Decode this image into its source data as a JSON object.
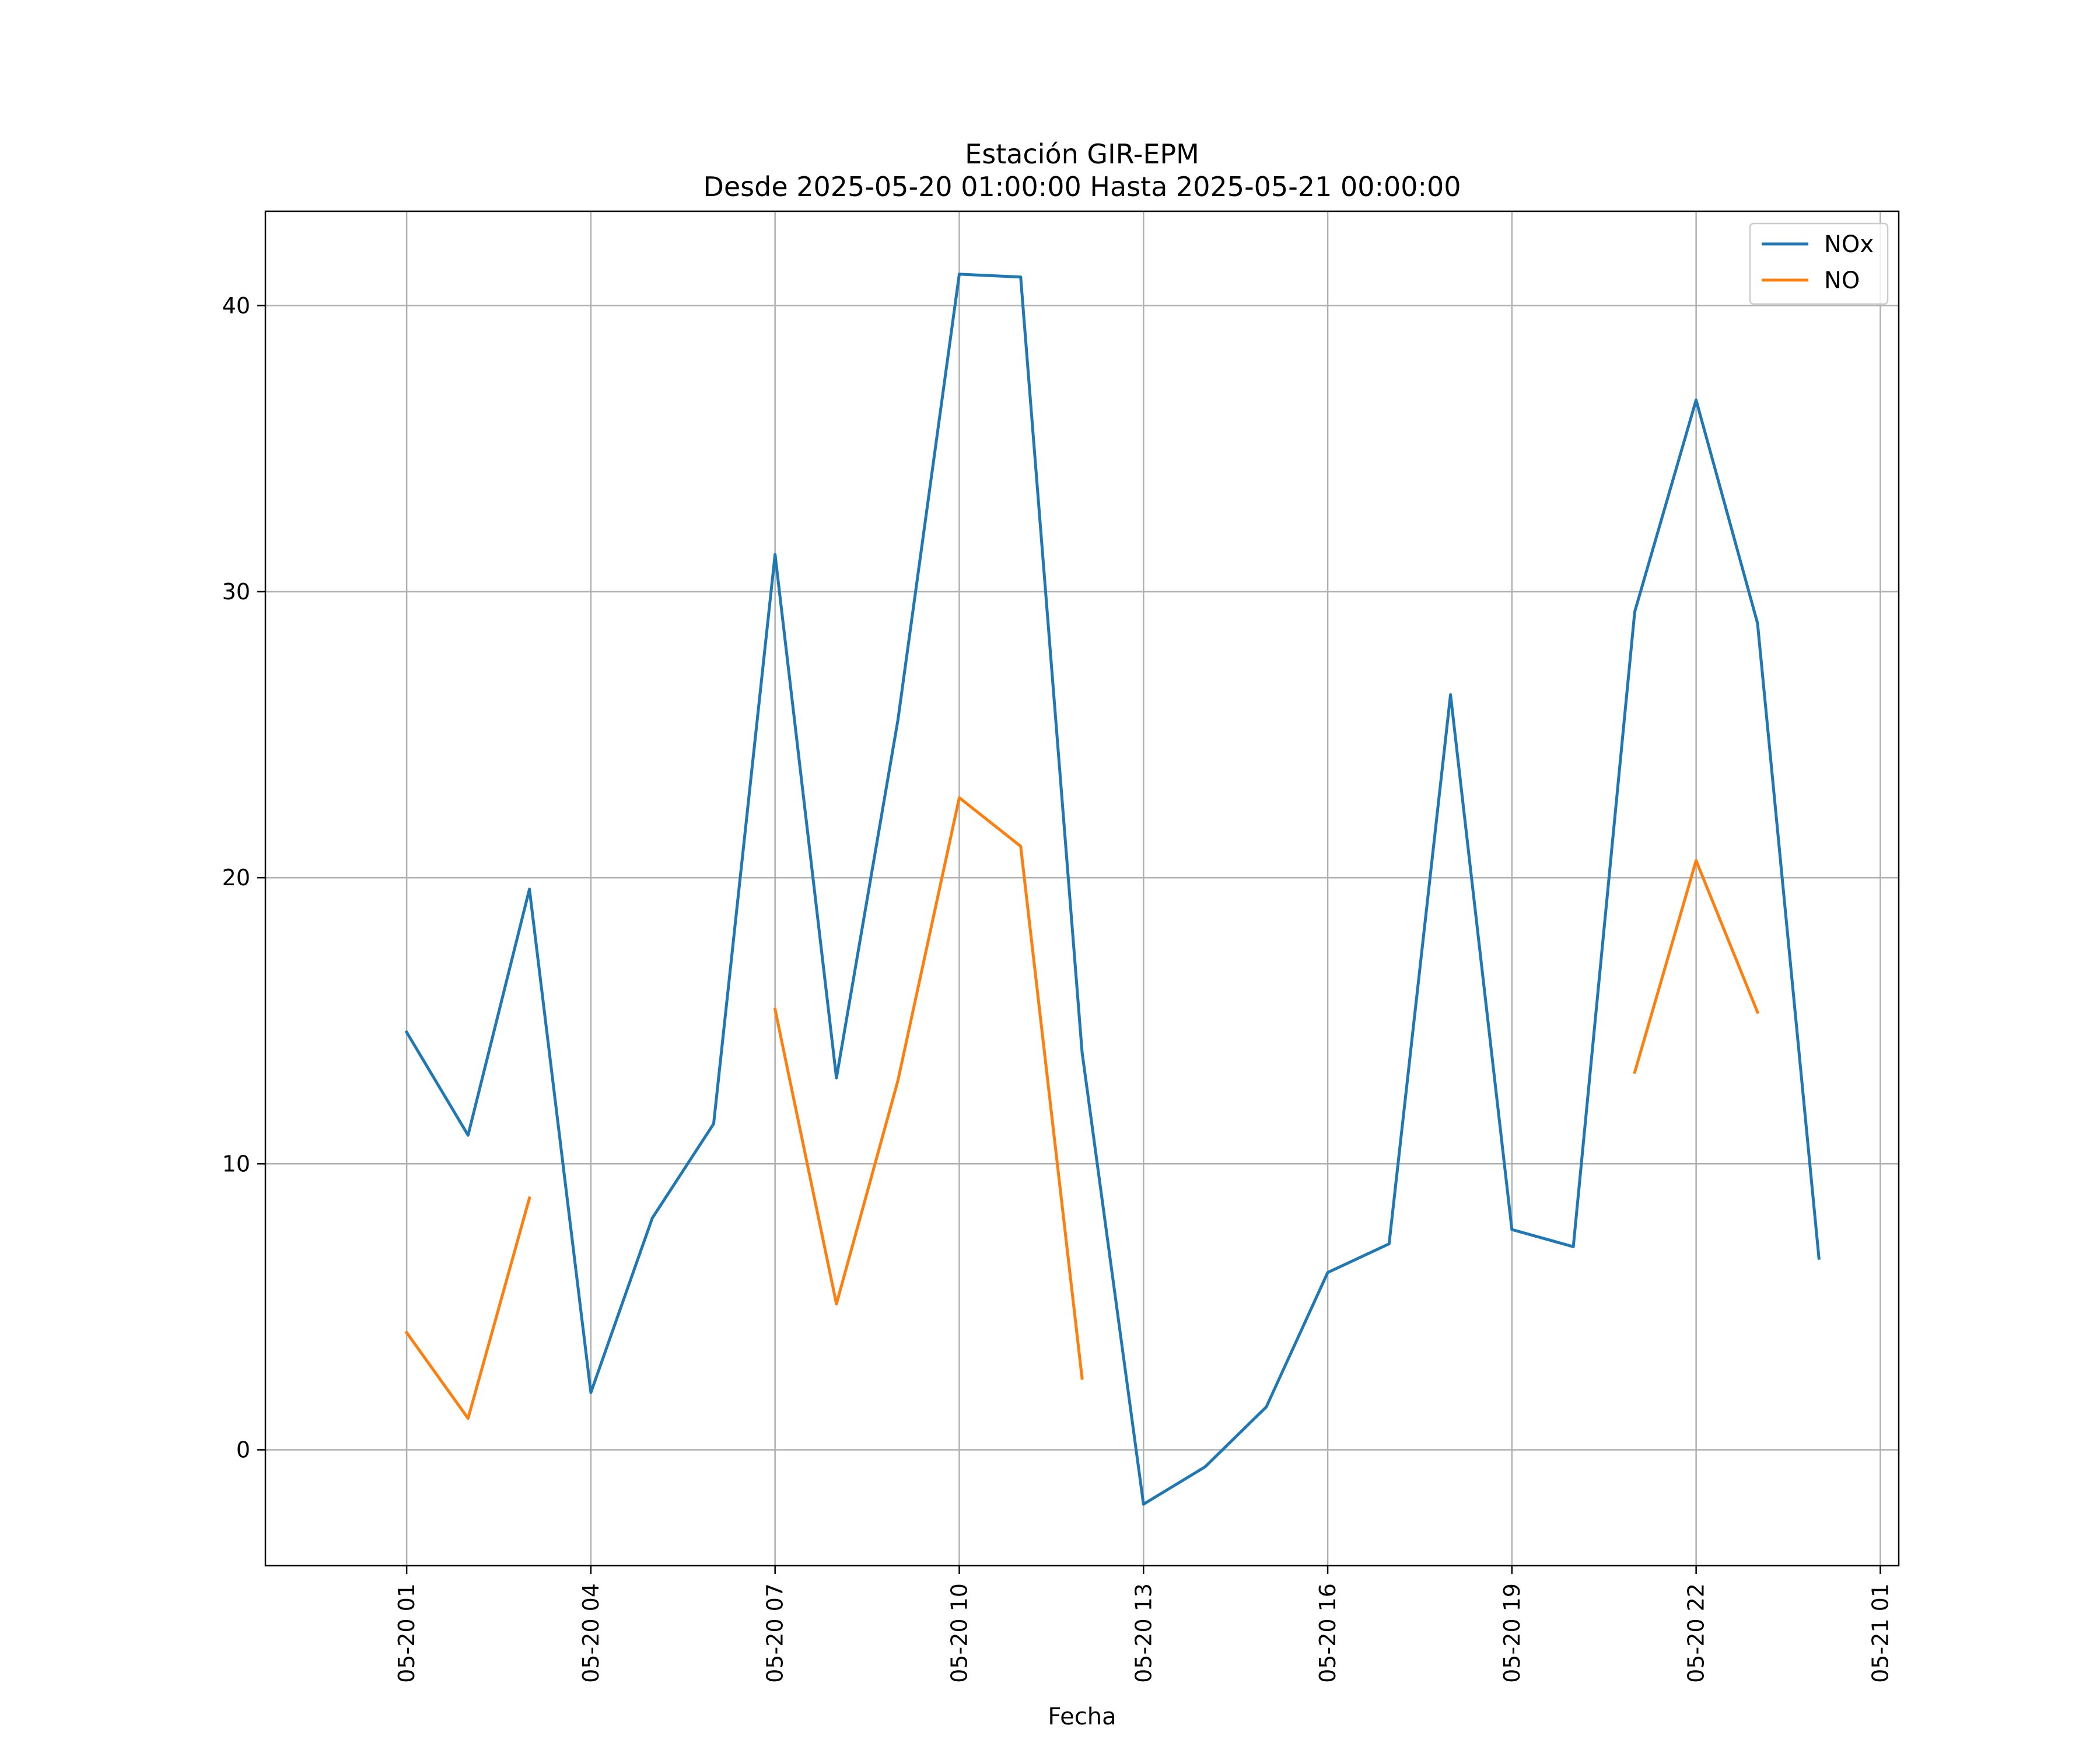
{
  "chart_data": {
    "type": "line",
    "title": "Estación GIR-EPM",
    "subtitle": "Desde 2025-05-20 01:00:00 Hasta 2025-05-21 00:00:00",
    "xlabel": "Fecha",
    "ylabel": "",
    "x": [
      "2025-05-20 01:00",
      "2025-05-20 02:00",
      "2025-05-20 03:00",
      "2025-05-20 04:00",
      "2025-05-20 05:00",
      "2025-05-20 06:00",
      "2025-05-20 07:00",
      "2025-05-20 08:00",
      "2025-05-20 09:00",
      "2025-05-20 10:00",
      "2025-05-20 11:00",
      "2025-05-20 12:00",
      "2025-05-20 13:00",
      "2025-05-20 14:00",
      "2025-05-20 15:00",
      "2025-05-20 16:00",
      "2025-05-20 17:00",
      "2025-05-20 18:00",
      "2025-05-20 19:00",
      "2025-05-20 20:00",
      "2025-05-20 21:00",
      "2025-05-20 22:00",
      "2025-05-20 23:00",
      "2025-05-21 00:00"
    ],
    "series": [
      {
        "name": "NOx",
        "color": "#1f77b4",
        "values": [
          14.6,
          11.0,
          19.6,
          2.0,
          8.1,
          11.4,
          31.3,
          13.0,
          25.5,
          41.1,
          41.0,
          13.9,
          -1.9,
          -0.6,
          1.5,
          6.2,
          7.2,
          26.4,
          7.7,
          7.1,
          29.3,
          36.7,
          28.9,
          6.7
        ]
      },
      {
        "name": "NO",
        "color": "#ff7f0e",
        "values": [
          4.1,
          1.1,
          8.8,
          null,
          null,
          null,
          15.4,
          5.1,
          12.9,
          22.8,
          21.1,
          2.5,
          null,
          null,
          null,
          null,
          null,
          null,
          null,
          null,
          13.2,
          20.6,
          15.3,
          null
        ]
      }
    ],
    "xticks": [
      "05-20 01",
      "05-20 04",
      "05-20 07",
      "05-20 10",
      "05-20 13",
      "05-20 16",
      "05-20 19",
      "05-20 22",
      "05-21 01"
    ],
    "xlim": [
      "2025-05-19 22:42",
      "2025-05-21 01:18"
    ],
    "yticks": [
      0,
      10,
      20,
      30,
      40
    ],
    "ylim": [
      -4.05,
      43.3
    ],
    "grid": true,
    "legend": "top-right"
  }
}
